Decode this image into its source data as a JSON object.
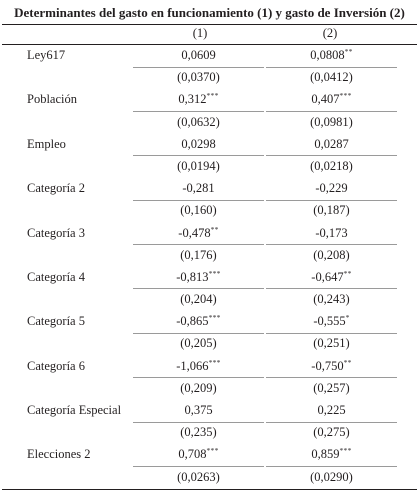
{
  "table": {
    "title": "Determinantes del gasto en funcionamiento (1) y gasto de Inversión (2)",
    "columns": [
      "(1)",
      "(2)"
    ],
    "rows": [
      {
        "label": "Ley617",
        "c1": "0,0609",
        "c1_stars": "",
        "c2": "0,0808",
        "c2_stars": "**",
        "se1": "(0,0370)",
        "se2": "(0,0412)"
      },
      {
        "label": "Población",
        "c1": "0,312",
        "c1_stars": "***",
        "c2": "0,407",
        "c2_stars": "***",
        "se1": "(0,0632)",
        "se2": "(0,0981)"
      },
      {
        "label": "Empleo",
        "c1": "0,0298",
        "c1_stars": "",
        "c2": "0,0287",
        "c2_stars": "",
        "se1": "(0,0194)",
        "se2": "(0,0218)"
      },
      {
        "label": "Categoría 2",
        "c1": "-0,281",
        "c1_stars": "",
        "c2": "-0,229",
        "c2_stars": "",
        "se1": "(0,160)",
        "se2": "(0,187)"
      },
      {
        "label": "Categoría 3",
        "c1": "-0,478",
        "c1_stars": "**",
        "c2": "-0,173",
        "c2_stars": "",
        "se1": "(0,176)",
        "se2": "(0,208)"
      },
      {
        "label": "Categoría 4",
        "c1": "-0,813",
        "c1_stars": "***",
        "c2": "-0,647",
        "c2_stars": "**",
        "se1": "(0,204)",
        "se2": "(0,243)"
      },
      {
        "label": "Categoría 5",
        "c1": "-0,865",
        "c1_stars": "***",
        "c2": "-0,555",
        "c2_stars": "*",
        "se1": "(0,205)",
        "se2": "(0,251)"
      },
      {
        "label": "Categoría 6",
        "c1": "-1,066",
        "c1_stars": "***",
        "c2": "-0,750",
        "c2_stars": "**",
        "se1": "(0,209)",
        "se2": "(0,257)"
      },
      {
        "label": "Categoría Especial",
        "c1": "0,375",
        "c1_stars": "",
        "c2": "0,225",
        "c2_stars": "",
        "se1": "(0,235)",
        "se2": "(0,275)"
      },
      {
        "label": "Elecciones 2",
        "c1": "0,708",
        "c1_stars": "***",
        "c2": "0,859",
        "c2_stars": "***",
        "se1": "(0,0263)",
        "se2": "(0,0290)"
      }
    ]
  }
}
